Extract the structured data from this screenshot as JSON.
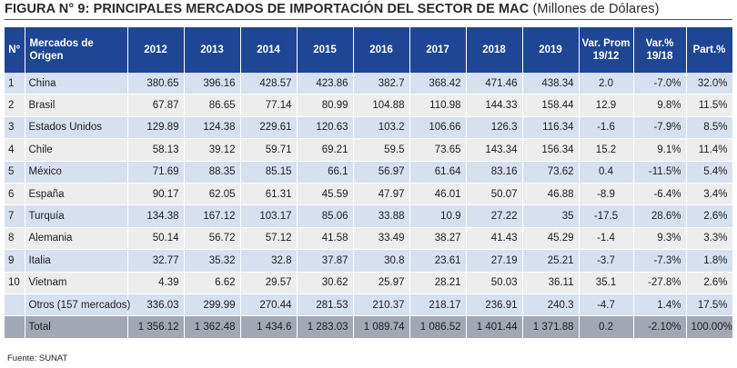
{
  "title": {
    "main": "FIGURA N° 9: PRINCIPALES MERCADOS DE IMPORTACIÓN DEL SECTOR DE MAC",
    "sub": "(Millones de Dólares)"
  },
  "table": {
    "headers": {
      "num": "N°",
      "mercado": "Mercados de Origen",
      "y2012": "2012",
      "y2013": "2013",
      "y2014": "2014",
      "y2015": "2015",
      "y2016": "2016",
      "y2017": "2017",
      "y2018": "2018",
      "y2019": "2019",
      "varprom_1": "Var. Prom",
      "varprom_2": "19/12",
      "var_1": "Var.%",
      "var_2": "19/18",
      "part": "Part.%"
    },
    "rows": [
      {
        "n": "1",
        "mercado": "China",
        "v": [
          "380.65",
          "396.16",
          "428.57",
          "423.86",
          "382.7",
          "368.42",
          "471.46",
          "438.34"
        ],
        "varprom": "2.0",
        "var": "-7.0%",
        "part": "32.0%"
      },
      {
        "n": "2",
        "mercado": "Brasil",
        "v": [
          "67.87",
          "86.65",
          "77.14",
          "80.99",
          "104.88",
          "110.98",
          "144.33",
          "158.44"
        ],
        "varprom": "12.9",
        "var": "9.8%",
        "part": "11.5%"
      },
      {
        "n": "3",
        "mercado": "Estados Unidos",
        "v": [
          "129.89",
          "124.38",
          "229.61",
          "120.63",
          "103.2",
          "106.66",
          "126.3",
          "116.34"
        ],
        "varprom": "-1.6",
        "var": "-7.9%",
        "part": "8.5%"
      },
      {
        "n": "4",
        "mercado": "Chile",
        "v": [
          "58.13",
          "39.12",
          "59.71",
          "69.21",
          "59.5",
          "73.65",
          "143.34",
          "156.34"
        ],
        "varprom": "15.2",
        "var": "9.1%",
        "part": "11.4%"
      },
      {
        "n": "5",
        "mercado": "México",
        "v": [
          "71.69",
          "88.35",
          "85.15",
          "66.1",
          "56.97",
          "61.64",
          "83.16",
          "73.62"
        ],
        "varprom": "0.4",
        "var": "-11.5%",
        "part": "5.4%"
      },
      {
        "n": "6",
        "mercado": "España",
        "v": [
          "90.17",
          "62.05",
          "61.31",
          "45.59",
          "47.97",
          "46.01",
          "50.07",
          "46.88"
        ],
        "varprom": "-8.9",
        "var": "-6.4%",
        "part": "3.4%"
      },
      {
        "n": "7",
        "mercado": "Turquía",
        "v": [
          "134.38",
          "167.12",
          "103.17",
          "85.06",
          "33.88",
          "10.9",
          "27.22",
          "35"
        ],
        "varprom": "-17.5",
        "var": "28.6%",
        "part": "2.6%"
      },
      {
        "n": "8",
        "mercado": "Alemania",
        "v": [
          "50.14",
          "56.72",
          "57.12",
          "41.58",
          "33.49",
          "38.27",
          "41.43",
          "45.29"
        ],
        "varprom": "-1.4",
        "var": "9.3%",
        "part": "3.3%"
      },
      {
        "n": "9",
        "mercado": "Italia",
        "v": [
          "32.77",
          "35.32",
          "32.8",
          "37.87",
          "30.8",
          "23.61",
          "27.19",
          "25.21"
        ],
        "varprom": "-3.7",
        "var": "-7.3%",
        "part": "1.8%"
      },
      {
        "n": "10",
        "mercado": "Vietnam",
        "v": [
          "4.39",
          "6.62",
          "29.57",
          "30.62",
          "25.97",
          "28.21",
          "50.03",
          "36.11"
        ],
        "varprom": "35.1",
        "var": "-27.8%",
        "part": "2.6%"
      },
      {
        "n": "",
        "mercado": "Otros (157 mercados)",
        "v": [
          "336.03",
          "299.99",
          "270.44",
          "281.53",
          "210.37",
          "218.17",
          "236.91",
          "240.3"
        ],
        "varprom": "-4.7",
        "var": "1.4%",
        "part": "17.5%"
      }
    ],
    "total": {
      "n": "",
      "mercado": "Total",
      "v": [
        "1 356.12",
        "1 362.48",
        "1 434.6",
        "1 283.03",
        "1 089.74",
        "1 086.52",
        "1 401.44",
        "1 371.88"
      ],
      "varprom": "0.2",
      "var": "-2.10%",
      "part": "100.00%"
    }
  },
  "source": "Fuente: SUNAT",
  "colors": {
    "header_bg": "#1f4694",
    "row_blue": "#d7e0ef",
    "row_gray": "#ededed",
    "total_bg": "#a2a8b3"
  }
}
